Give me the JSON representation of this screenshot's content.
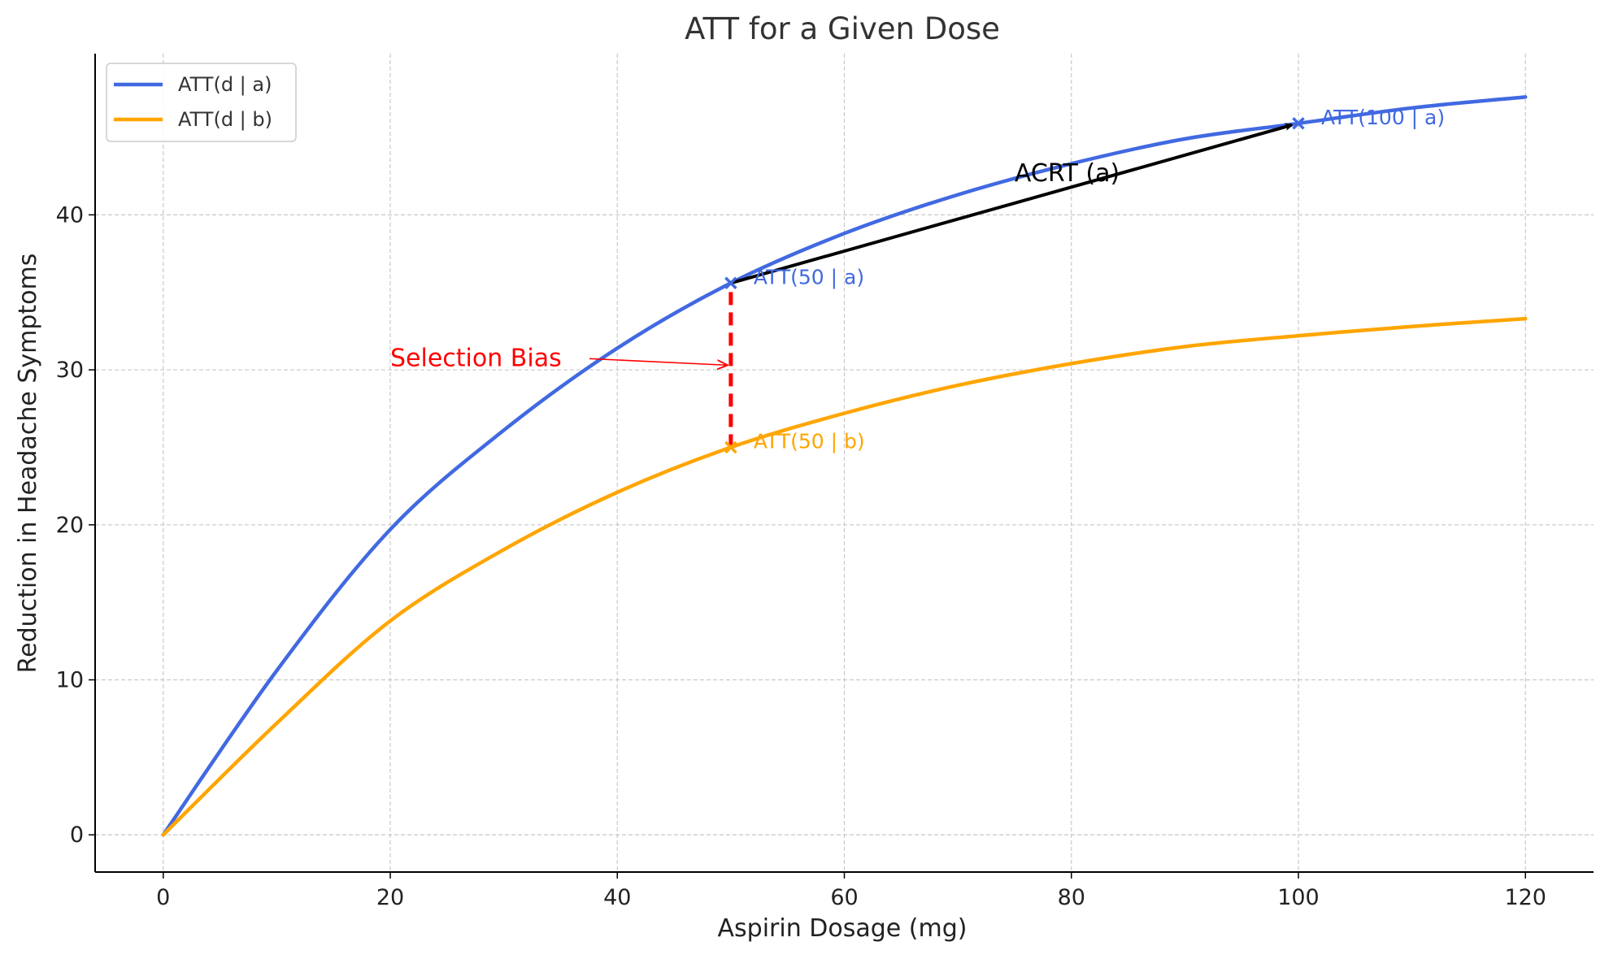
{
  "chart_data": {
    "type": "line",
    "title": "ATT for a Given Dose",
    "xlabel": "Aspirin Dosage (mg)",
    "ylabel": "Reduction in Headache Symptoms",
    "xlim": [
      -6,
      126
    ],
    "ylim": [
      -2.4,
      50.4
    ],
    "xticks": [
      0,
      20,
      40,
      60,
      80,
      100,
      120
    ],
    "yticks": [
      0,
      10,
      20,
      30,
      40
    ],
    "grid": true,
    "legend_position": "top-left",
    "x": [
      0,
      10,
      20,
      30,
      40,
      50,
      60,
      70,
      80,
      90,
      100,
      110,
      120
    ],
    "series": [
      {
        "name": "ATT(d | a)",
        "color": "#4169E1",
        "values": [
          0,
          10.6,
          19.7,
          26.1,
          31.4,
          35.6,
          38.8,
          41.3,
          43.3,
          44.9,
          45.9,
          46.9,
          47.6
        ]
      },
      {
        "name": "ATT(d | b)",
        "color": "#FFA500",
        "values": [
          0,
          7.2,
          13.8,
          18.4,
          22.1,
          25.0,
          27.2,
          29.0,
          30.4,
          31.5,
          32.2,
          32.8,
          33.3
        ]
      }
    ],
    "points": [
      {
        "label": "ATT(50 | a)",
        "x": 50,
        "y": 35.6,
        "color": "#4169E1"
      },
      {
        "label": "ATT(50 | b)",
        "x": 50,
        "y": 25.0,
        "color": "#FFA500"
      },
      {
        "label": "ATT(100 | a)",
        "x": 100,
        "y": 45.9,
        "color": "#4169E1"
      }
    ],
    "annotations": {
      "selection_bias": {
        "label": "Selection Bias",
        "text_x": 20,
        "text_y": 30.3,
        "arrow_to_x": 50,
        "arrow_to_y": 30.3,
        "color": "#FF0000",
        "bar_x": 50,
        "bar_y_from": 25.0,
        "bar_y_to": 35.6
      },
      "acrt": {
        "label": "ACRT (a)",
        "text_x": 75,
        "text_y": 42.7,
        "from_x": 50,
        "from_y": 35.6,
        "to_x": 100,
        "to_y": 45.9,
        "color": "#000000"
      }
    }
  }
}
